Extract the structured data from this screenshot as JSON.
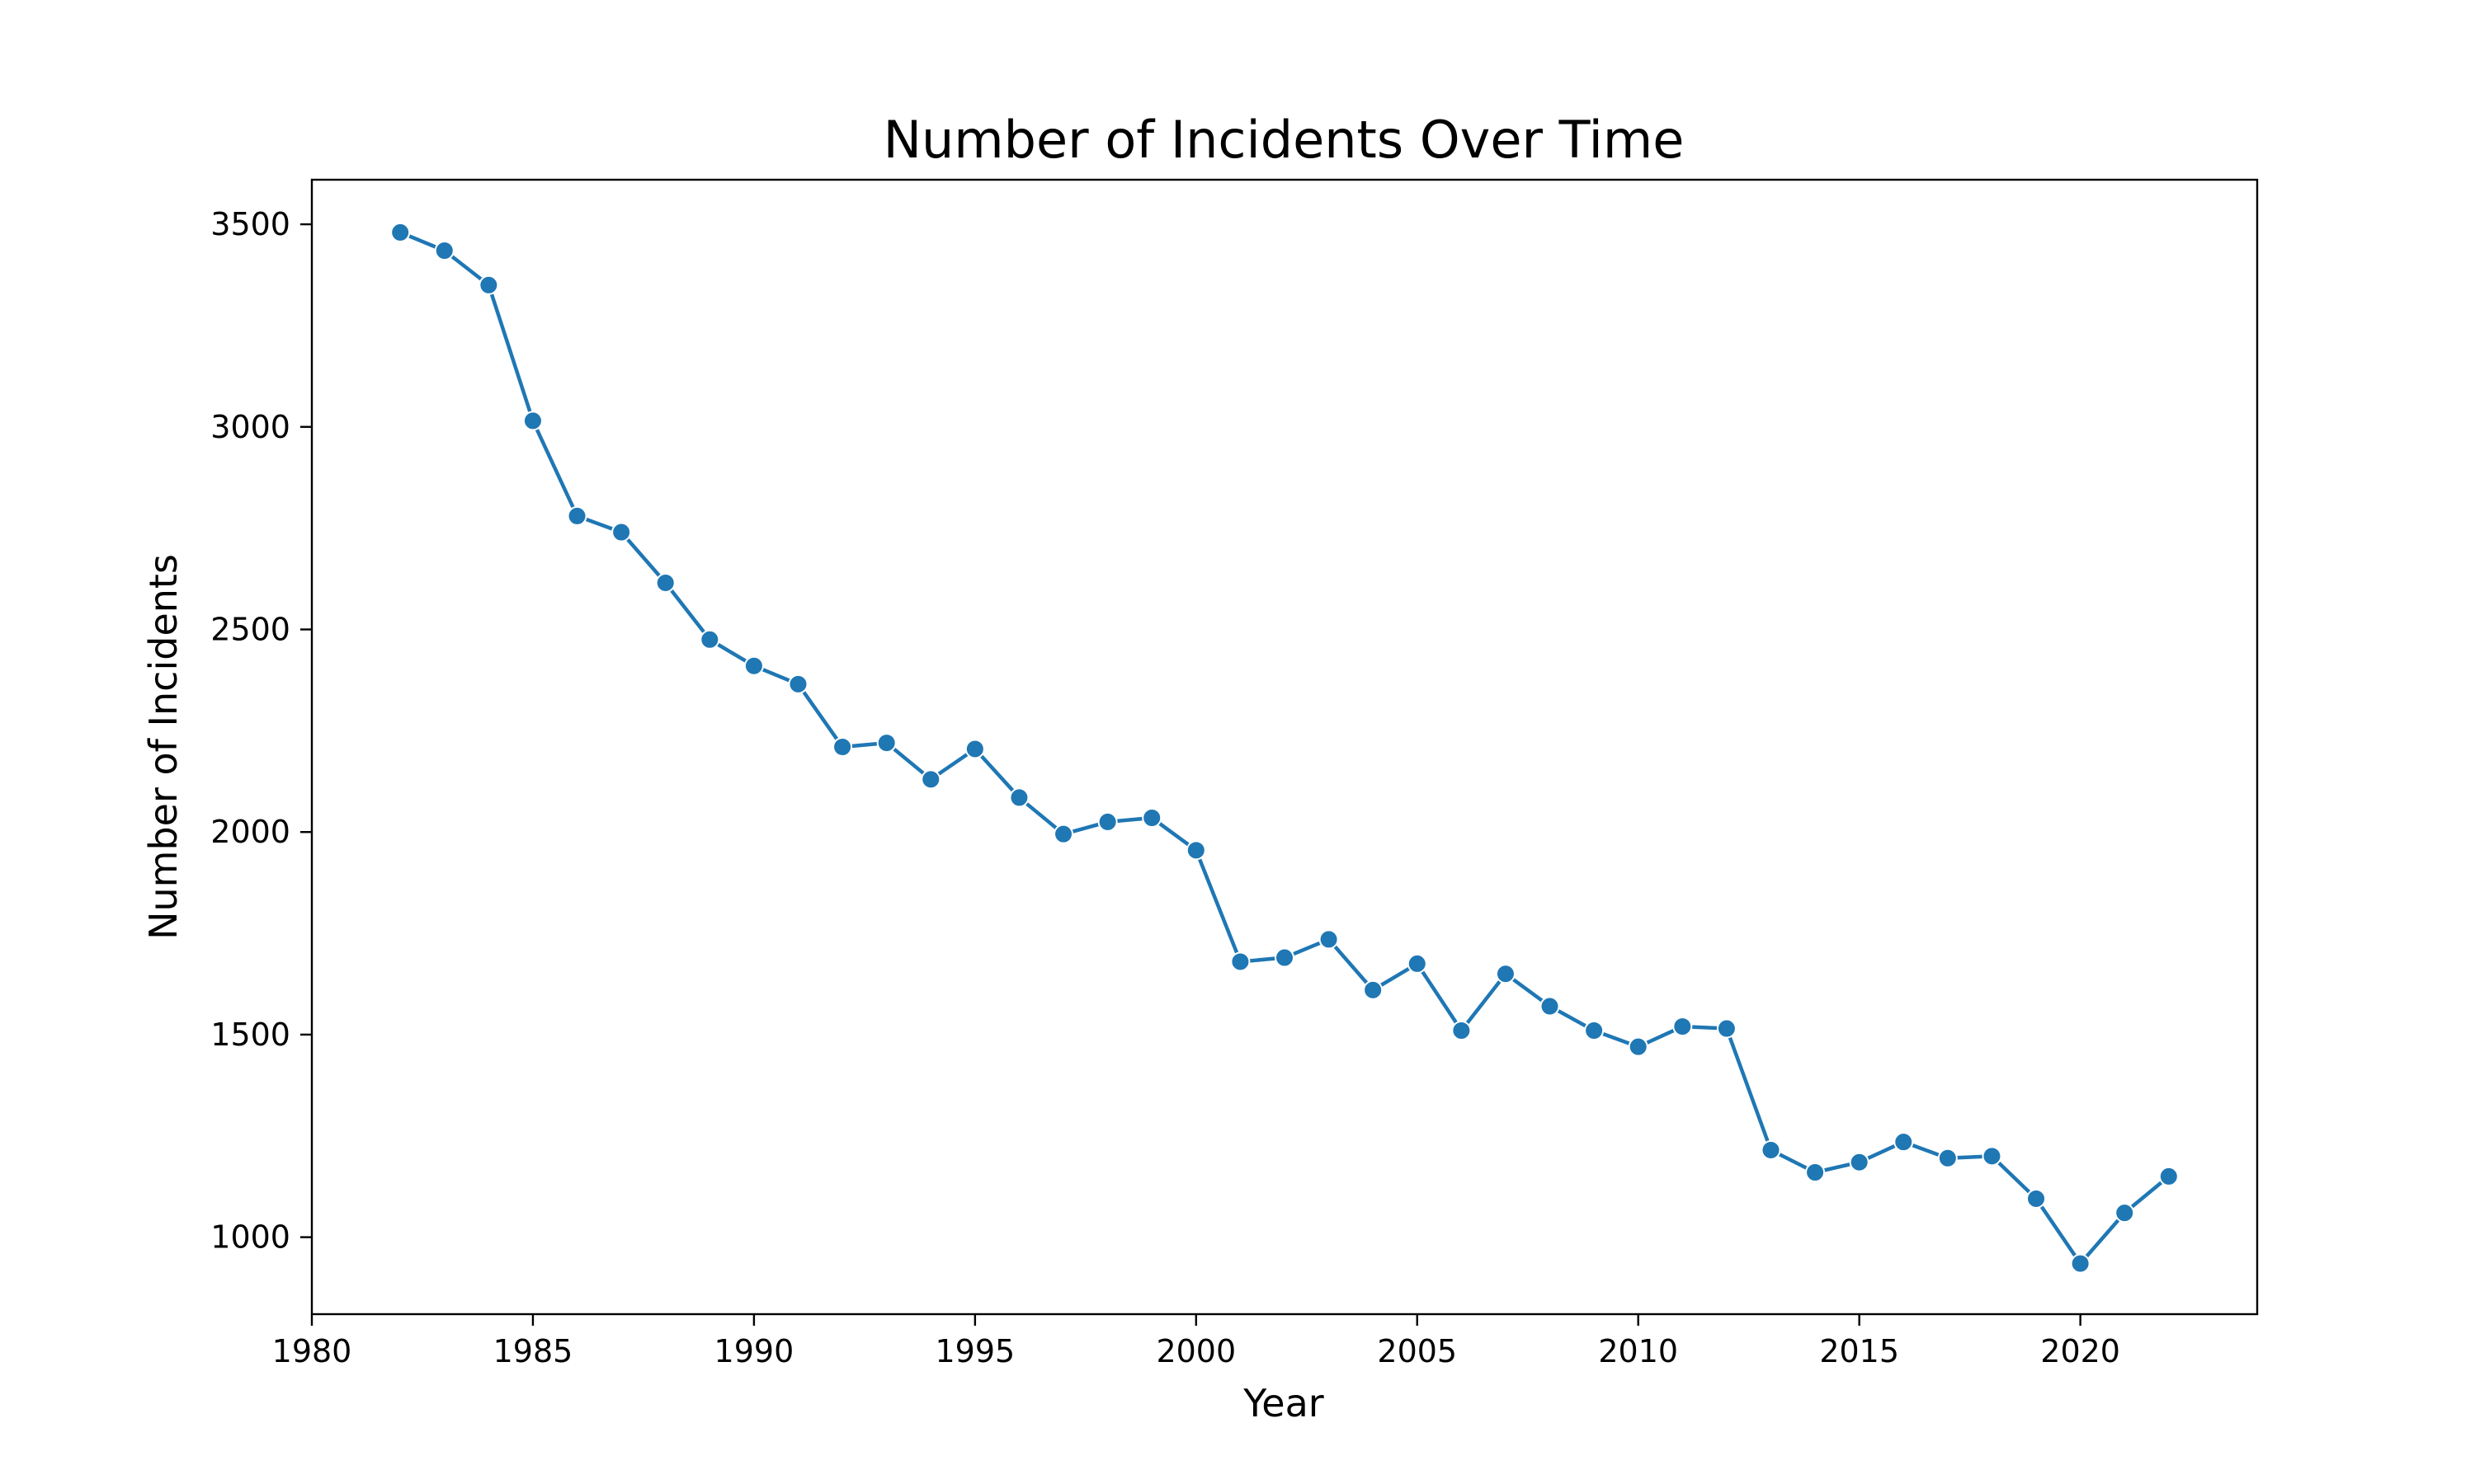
{
  "chart_data": {
    "type": "line",
    "title": "Number of Incidents Over Time",
    "xlabel": "Year",
    "ylabel": "Number of Incidents",
    "xlim": [
      1980,
      2024
    ],
    "ylim": [
      810,
      3610
    ],
    "xticks": [
      1980,
      1985,
      1990,
      1995,
      2000,
      2005,
      2010,
      2015,
      2020
    ],
    "yticks": [
      1000,
      1500,
      2000,
      2500,
      3000,
      3500
    ],
    "grid": false,
    "color": "#1f77b4",
    "series": [
      {
        "x": [
          1982,
          1983,
          1984,
          1985,
          1986,
          1987,
          1988,
          1989,
          1990,
          1991,
          1992,
          1993,
          1994,
          1995,
          1996,
          1997,
          1998,
          1999,
          2000,
          2001,
          2002,
          2003,
          2004,
          2005,
          2006,
          2007,
          2008,
          2009,
          2010,
          2011,
          2012,
          2013,
          2014,
          2015,
          2016,
          2017,
          2018,
          2019,
          2020,
          2021,
          2022
        ],
        "values": [
          3480,
          3435,
          3350,
          3015,
          2780,
          2740,
          2615,
          2475,
          2410,
          2365,
          2210,
          2220,
          2130,
          2205,
          2085,
          1995,
          2025,
          2035,
          1955,
          1680,
          1690,
          1735,
          1610,
          1675,
          1510,
          1650,
          1570,
          1510,
          1470,
          1520,
          1515,
          1215,
          1160,
          1185,
          1235,
          1195,
          1200,
          1095,
          935,
          1060,
          1150
        ]
      }
    ]
  }
}
